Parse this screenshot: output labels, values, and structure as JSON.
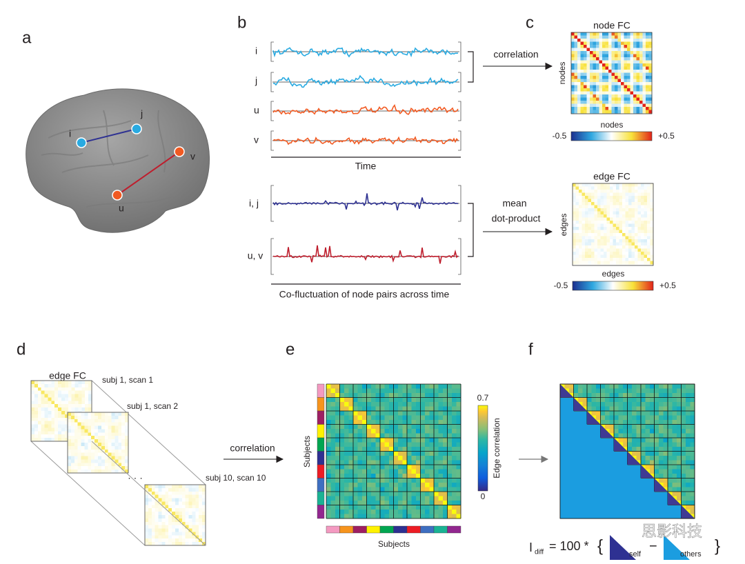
{
  "panel_labels": [
    "a",
    "b",
    "c",
    "d",
    "e",
    "f"
  ],
  "brain": {
    "nodes": [
      "i",
      "j",
      "u",
      "v"
    ]
  },
  "timeseries": {
    "node_signals": [
      "i",
      "j",
      "u",
      "v"
    ],
    "node_axis": "Time",
    "edge_signals": [
      "i, j",
      "u, v"
    ],
    "edge_axis": "Co-fluctuation of node pairs across time"
  },
  "arrows": {
    "node": "correlation",
    "edge": [
      "mean",
      "dot-product"
    ],
    "subjects": "correlation"
  },
  "node_fc": {
    "title": "node FC",
    "y_label": "nodes",
    "x_label": "nodes",
    "colorbar": [
      "-0.5",
      "+0.5"
    ]
  },
  "edge_fc": {
    "title": "edge FC",
    "y_label": "edges",
    "x_label": "edges",
    "colorbar": [
      "-0.5",
      "+0.5"
    ]
  },
  "scans": {
    "title": "edge FC",
    "labels": [
      "subj 1, scan 1",
      "subj 1, scan 2",
      "subj 10, scan 10"
    ],
    "ellipsis": "· · ·"
  },
  "subject_matrix": {
    "y_label": "Subjects",
    "x_label": "Subjects",
    "colorbar_label": "Edge correlation",
    "colorbar": [
      "0.7",
      "0"
    ]
  },
  "formula": {
    "symbol": "I",
    "subscript": "diff",
    "prefix": "= 100 *",
    "open": "{",
    "self": "self",
    "minus": "−",
    "others": "others",
    "close": "}"
  },
  "watermark": "思影科技"
}
